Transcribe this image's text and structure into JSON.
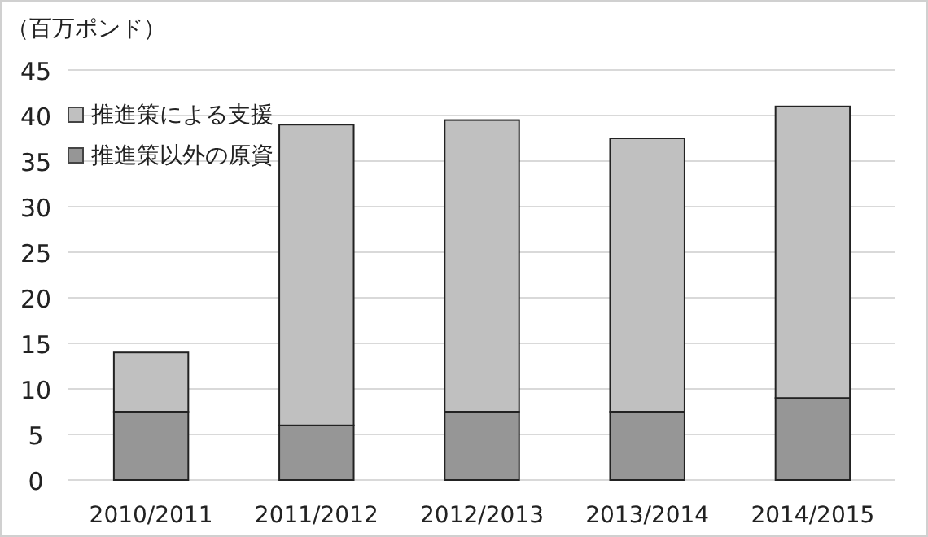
{
  "chart_data": {
    "type": "bar",
    "stacked": true,
    "ylabel": "（百万ポンド）",
    "categories": [
      "2010/2011",
      "2011/2012",
      "2012/2013",
      "2013/2014",
      "2014/2015"
    ],
    "series": [
      {
        "name": "推進策以外の原資",
        "color": "#969696",
        "values": [
          7.5,
          6,
          7.5,
          7.5,
          9
        ]
      },
      {
        "name": "推進策による支援",
        "color": "#c0c0c0",
        "values": [
          6.5,
          33,
          32,
          30,
          32
        ]
      }
    ],
    "ylim": [
      0,
      45
    ],
    "yticks": [
      0,
      5,
      10,
      15,
      20,
      25,
      30,
      35,
      40,
      45
    ],
    "grid": "y",
    "legend": "top left"
  }
}
